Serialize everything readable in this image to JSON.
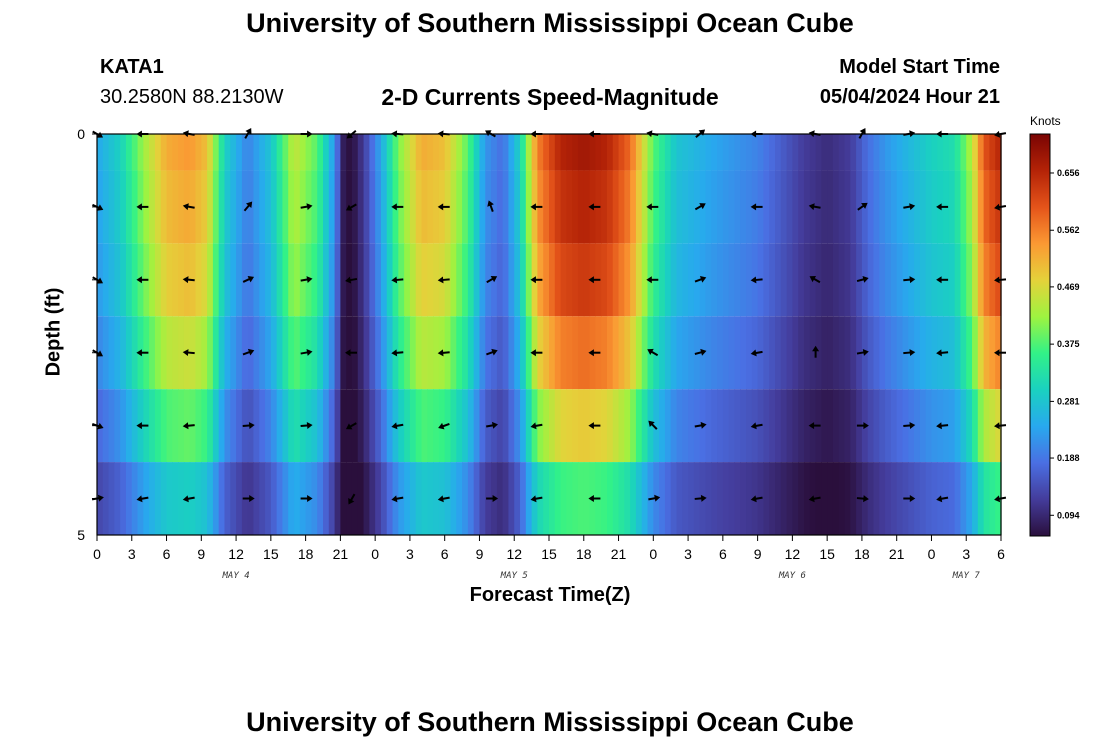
{
  "header": {
    "title": "University of Southern Mississippi Ocean Cube",
    "station_id": "KATA1",
    "coords": "30.2580N  88.2130W",
    "subtitle": "2-D Currents Speed-Magnitude",
    "model_start_label": "Model Start Time",
    "model_start_value": "05/04/2024 Hour 21"
  },
  "footer": {
    "title": "University of Southern Mississippi Ocean Cube"
  },
  "colors": {
    "colormap": [
      "#2a0f3c",
      "#443c9b",
      "#4a6fe3",
      "#28a9ee",
      "#1ad1c0",
      "#32f287",
      "#9ef340",
      "#e4d23a",
      "#fb9933",
      "#e4541a",
      "#b42307",
      "#7a0403"
    ]
  },
  "chart_data": {
    "type": "heatmap",
    "title": "2-D Currents Speed-Magnitude",
    "xlabel": "Forecast Time(Z)",
    "ylabel": "Depth (ft)",
    "y_ticks": [
      "0",
      "5"
    ],
    "ylim": [
      0,
      5
    ],
    "x_ticks": [
      "0",
      "3",
      "6",
      "9",
      "12",
      "15",
      "18",
      "21",
      "0",
      "3",
      "6",
      "9",
      "12",
      "15",
      "18",
      "21",
      "0",
      "3",
      "6",
      "9",
      "12",
      "15",
      "18",
      "21",
      "0",
      "3",
      "6"
    ],
    "date_labels": [
      {
        "text": "MAY 4",
        "hour": 12
      },
      {
        "text": "MAY 5",
        "hour": 36
      },
      {
        "text": "MAY 6",
        "hour": 60
      },
      {
        "text": "MAY 7",
        "hour": 75
      }
    ],
    "hours_total": 78,
    "colorbar": {
      "unit": "Knots",
      "min": 0.06,
      "max": 0.72,
      "ticks": [
        "0.094",
        "0.188",
        "0.281",
        "0.375",
        "0.469",
        "0.562",
        "0.656"
      ],
      "tick_values": [
        0.094,
        0.188,
        0.281,
        0.375,
        0.469,
        0.562,
        0.656
      ]
    },
    "depth_layers": [
      0.5,
      1.5,
      2.5,
      3.5,
      4.5
    ],
    "speed_profile": {
      "hours": [
        0,
        2,
        4,
        6,
        8,
        9.5,
        11,
        13,
        15,
        17,
        19,
        20.5,
        21.3,
        22,
        23,
        24.5,
        26,
        28,
        30,
        32,
        33.5,
        35,
        36.5,
        38,
        40,
        42,
        44,
        46,
        48,
        50,
        51.5,
        53,
        55,
        57,
        59,
        61,
        63,
        65,
        66.5,
        68,
        70,
        72,
        74,
        75.5,
        76.5,
        78
      ],
      "values": [
        0.24,
        0.3,
        0.42,
        0.52,
        0.54,
        0.5,
        0.3,
        0.2,
        0.28,
        0.45,
        0.38,
        0.22,
        0.07,
        0.06,
        0.12,
        0.24,
        0.4,
        0.52,
        0.5,
        0.38,
        0.22,
        0.18,
        0.3,
        0.56,
        0.66,
        0.68,
        0.66,
        0.58,
        0.38,
        0.28,
        0.26,
        0.24,
        0.22,
        0.2,
        0.16,
        0.12,
        0.1,
        0.12,
        0.18,
        0.22,
        0.26,
        0.3,
        0.32,
        0.44,
        0.6,
        0.66
      ]
    },
    "depth_factors": [
      1.0,
      0.97,
      0.93,
      0.85,
      0.72,
      0.55
    ],
    "arrows": [
      {
        "hour": 0,
        "dirs": [
          120,
          115,
          120,
          120,
          110,
          80
        ]
      },
      {
        "hour": 4,
        "dirs": [
          -90,
          -90,
          -90,
          -90,
          -90,
          -100
        ]
      },
      {
        "hour": 8,
        "dirs": [
          -80,
          -80,
          -85,
          -85,
          -95,
          -100
        ]
      },
      {
        "hour": 13,
        "dirs": [
          30,
          40,
          65,
          70,
          85,
          90
        ]
      },
      {
        "hour": 18,
        "dirs": [
          90,
          80,
          80,
          80,
          85,
          90
        ]
      },
      {
        "hour": 22,
        "dirs": [
          -130,
          -120,
          -100,
          -90,
          -120,
          -150
        ]
      },
      {
        "hour": 26,
        "dirs": [
          -85,
          -90,
          -95,
          -95,
          -100,
          -100
        ]
      },
      {
        "hour": 30,
        "dirs": [
          -85,
          -90,
          -95,
          -95,
          -110,
          -100
        ]
      },
      {
        "hour": 34,
        "dirs": [
          -60,
          -20,
          60,
          70,
          80,
          90
        ]
      },
      {
        "hour": 38,
        "dirs": [
          -90,
          -90,
          -90,
          -90,
          -100,
          -100
        ]
      },
      {
        "hour": 43,
        "dirs": [
          -90,
          -90,
          -90,
          -90,
          -90,
          -90
        ]
      },
      {
        "hour": 48,
        "dirs": [
          -80,
          -90,
          -90,
          -60,
          -45,
          80
        ]
      },
      {
        "hour": 52,
        "dirs": [
          50,
          60,
          70,
          75,
          80,
          85
        ]
      },
      {
        "hour": 57,
        "dirs": [
          -90,
          -90,
          -95,
          -100,
          -100,
          -100
        ]
      },
      {
        "hour": 62,
        "dirs": [
          -80,
          -80,
          -60,
          0,
          -90,
          -100
        ]
      },
      {
        "hour": 66,
        "dirs": [
          30,
          55,
          75,
          80,
          90,
          95
        ]
      },
      {
        "hour": 70,
        "dirs": [
          80,
          80,
          85,
          85,
          85,
          90
        ]
      },
      {
        "hour": 73,
        "dirs": [
          -90,
          -90,
          -90,
          -95,
          -95,
          -100
        ]
      },
      {
        "hour": 78,
        "dirs": [
          -100,
          -100,
          -95,
          -90,
          -95,
          -100
        ]
      }
    ]
  }
}
